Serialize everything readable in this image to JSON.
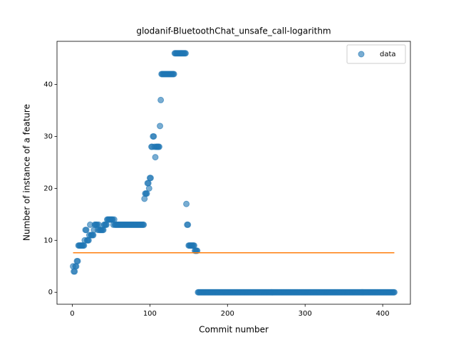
{
  "chart_data": {
    "type": "scatter",
    "title": "glodanif-BluetoothChat_unsafe_call-logarithm",
    "x_label": "Commit number",
    "y_label": "Number of instance of a feature",
    "xlim": [
      -19.7,
      435.7
    ],
    "ylim": [
      -2.3,
      48.3
    ],
    "xticks": [
      0,
      100,
      200,
      300,
      400
    ],
    "yticks": [
      0,
      10,
      20,
      30,
      40
    ],
    "legend": "upper right",
    "series": [
      {
        "name": "data",
        "color": "#1f77b4",
        "mode": "markers",
        "x": [
          1,
          2,
          3,
          4,
          5,
          6,
          7,
          8,
          9,
          10,
          11,
          12,
          13,
          14,
          15,
          16,
          17,
          18,
          19,
          20,
          21,
          22,
          23,
          24,
          25,
          26,
          27,
          28,
          29,
          30,
          31,
          32,
          33,
          34,
          35,
          36,
          37,
          38,
          39,
          40,
          41,
          42,
          43,
          44,
          45,
          46,
          47,
          48,
          49,
          50,
          51,
          52,
          53,
          54,
          55,
          56,
          57,
          58,
          59,
          60,
          61,
          62,
          63,
          64,
          65,
          66,
          67,
          68,
          69,
          70,
          71,
          72,
          73,
          74,
          75,
          76,
          77,
          78,
          79,
          80,
          81,
          82,
          83,
          84,
          85,
          86,
          87,
          88,
          89,
          90,
          91,
          92,
          93,
          94,
          95,
          96,
          97,
          98,
          99,
          100,
          101,
          102,
          103,
          104,
          105,
          106,
          107,
          108,
          109,
          110,
          111,
          112,
          113,
          114,
          115,
          116,
          117,
          118,
          119,
          120,
          121,
          122,
          123,
          124,
          125,
          126,
          127,
          128,
          129,
          130,
          131,
          132,
          133,
          134,
          135,
          136,
          137,
          138,
          139,
          140,
          141,
          142,
          143,
          144,
          145,
          146,
          147,
          148,
          149,
          150,
          151,
          152,
          153,
          154,
          155,
          156,
          157,
          158,
          159,
          160,
          161,
          162,
          163,
          164,
          165,
          166,
          167,
          168,
          169,
          170,
          171,
          172,
          173,
          174,
          175,
          176,
          177,
          178,
          179,
          180,
          181,
          182,
          183,
          184,
          185,
          186,
          187,
          188,
          189,
          190,
          191,
          192,
          193,
          194,
          195,
          196,
          197,
          198,
          199,
          200,
          201,
          202,
          203,
          204,
          205,
          206,
          207,
          208,
          209,
          210,
          211,
          212,
          213,
          214,
          215,
          216,
          217,
          218,
          219,
          220,
          221,
          222,
          223,
          224,
          225,
          226,
          227,
          228,
          229,
          230,
          231,
          232,
          233,
          234,
          235,
          236,
          237,
          238,
          239,
          240,
          241,
          242,
          243,
          244,
          245,
          246,
          247,
          248,
          249,
          250,
          251,
          252,
          253,
          254,
          255,
          256,
          257,
          258,
          259,
          260,
          261,
          262,
          263,
          264,
          265,
          266,
          267,
          268,
          269,
          270,
          271,
          272,
          273,
          274,
          275,
          276,
          277,
          278,
          279,
          280,
          281,
          282,
          283,
          284,
          285,
          286,
          287,
          288,
          289,
          290,
          291,
          292,
          293,
          294,
          295,
          296,
          297,
          298,
          299,
          300,
          301,
          302,
          303,
          304,
          305,
          306,
          307,
          308,
          309,
          310,
          311,
          312,
          313,
          314,
          315,
          316,
          317,
          318,
          319,
          320,
          321,
          322,
          323,
          324,
          325,
          326,
          327,
          328,
          329,
          330,
          331,
          332,
          333,
          334,
          335,
          336,
          337,
          338,
          339,
          340,
          341,
          342,
          343,
          344,
          345,
          346,
          347,
          348,
          349,
          350,
          351,
          352,
          353,
          354,
          355,
          356,
          357,
          358,
          359,
          360,
          361,
          362,
          363,
          364,
          365,
          366,
          367,
          368,
          369,
          370,
          371,
          372,
          373,
          374,
          375,
          376,
          377,
          378,
          379,
          380,
          381,
          382,
          383,
          384,
          385,
          386,
          387,
          388,
          389,
          390,
          391,
          392,
          393,
          394,
          395,
          396,
          397,
          398,
          399,
          400,
          401,
          402,
          403,
          404,
          405,
          406,
          407,
          408,
          409,
          410,
          411,
          412,
          413,
          414,
          415
        ],
        "values": [
          5,
          4,
          4,
          5,
          5,
          6,
          6,
          9,
          9,
          9,
          9,
          9,
          9,
          9,
          9,
          10,
          12,
          12,
          10,
          10,
          10,
          11,
          13,
          11,
          11,
          11,
          11,
          12,
          13,
          13,
          13,
          13,
          12,
          13,
          12,
          12,
          12,
          12,
          12,
          12,
          13,
          13,
          13,
          13,
          14,
          14,
          14,
          14,
          14,
          14,
          14,
          14,
          13,
          14,
          13,
          13,
          13,
          13,
          13,
          13,
          13,
          13,
          13,
          13,
          13,
          13,
          13,
          13,
          13,
          13,
          13,
          13,
          13,
          13,
          13,
          13,
          13,
          13,
          13,
          13,
          13,
          13,
          13,
          13,
          13,
          13,
          13,
          13,
          13,
          13,
          13,
          13,
          18,
          19,
          19,
          19,
          21,
          21,
          20,
          22,
          22,
          28,
          28,
          30,
          30,
          28,
          26,
          28,
          28,
          28,
          28,
          28,
          32,
          37,
          42,
          42,
          42,
          42,
          42,
          42,
          42,
          42,
          42,
          42,
          42,
          42,
          42,
          42,
          42,
          42,
          42,
          46,
          46,
          46,
          46,
          46,
          46,
          46,
          46,
          46,
          46,
          46,
          46,
          46,
          46,
          46,
          17,
          13,
          13,
          9,
          9,
          9,
          9,
          9,
          9,
          9,
          9,
          8,
          8,
          8,
          8,
          0,
          0,
          0,
          0,
          0,
          0,
          0,
          0,
          0,
          0,
          0,
          0,
          0,
          0,
          0,
          0,
          0,
          0,
          0,
          0,
          0,
          0,
          0,
          0,
          0,
          0,
          0,
          0,
          0,
          0,
          0,
          0,
          0,
          0,
          0,
          0,
          0,
          0,
          0,
          0,
          0,
          0,
          0,
          0,
          0,
          0,
          0,
          0,
          0,
          0,
          0,
          0,
          0,
          0,
          0,
          0,
          0,
          0,
          0,
          0,
          0,
          0,
          0,
          0,
          0,
          0,
          0,
          0,
          0,
          0,
          0,
          0,
          0,
          0,
          0,
          0,
          0,
          0,
          0,
          0,
          0,
          0,
          0,
          0,
          0,
          0,
          0,
          0,
          0,
          0,
          0,
          0,
          0,
          0,
          0,
          0,
          0,
          0,
          0,
          0,
          0,
          0,
          0,
          0,
          0,
          0,
          0,
          0,
          0,
          0,
          0,
          0,
          0,
          0,
          0,
          0,
          0,
          0,
          0,
          0,
          0,
          0,
          0,
          0,
          0,
          0,
          0,
          0,
          0,
          0,
          0,
          0,
          0,
          0,
          0,
          0,
          0,
          0,
          0,
          0,
          0,
          0,
          0,
          0,
          0,
          0,
          0,
          0,
          0,
          0,
          0,
          0,
          0,
          0,
          0,
          0,
          0,
          0,
          0,
          0,
          0,
          0,
          0,
          0,
          0,
          0,
          0,
          0,
          0,
          0,
          0,
          0,
          0,
          0,
          0,
          0,
          0,
          0,
          0,
          0,
          0,
          0,
          0,
          0,
          0,
          0,
          0,
          0,
          0,
          0,
          0,
          0,
          0,
          0,
          0,
          0,
          0,
          0,
          0,
          0,
          0,
          0,
          0,
          0,
          0,
          0,
          0,
          0,
          0,
          0,
          0,
          0,
          0,
          0,
          0,
          0,
          0,
          0,
          0,
          0,
          0,
          0,
          0,
          0,
          0,
          0,
          0,
          0,
          0,
          0,
          0,
          0,
          0,
          0,
          0,
          0,
          0,
          0,
          0,
          0,
          0,
          0,
          0,
          0,
          0,
          0,
          0,
          0,
          0,
          0,
          0,
          0,
          0,
          0
        ]
      },
      {
        "color": "#ff7f0e",
        "mode": "line",
        "x": [
          1,
          415
        ],
        "values": [
          7.6,
          7.6
        ]
      }
    ]
  }
}
